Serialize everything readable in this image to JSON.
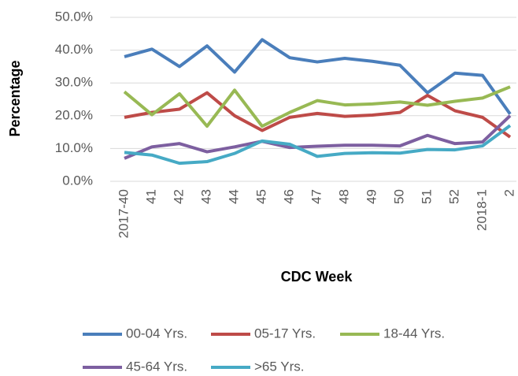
{
  "chart_data": {
    "type": "line",
    "x_label": "CDC Week",
    "y_label": "Percentage",
    "categories": [
      "2017-40",
      "41",
      "42",
      "43",
      "44",
      "45",
      "46",
      "47",
      "48",
      "49",
      "50",
      "51",
      "52",
      "2018-1",
      "2"
    ],
    "series": [
      {
        "name": "00-04 Yrs.",
        "color": "#4a7ebb",
        "values": [
          38,
          40.3,
          35,
          41.3,
          33.3,
          43.2,
          37.7,
          36.4,
          37.5,
          36.6,
          35.4,
          27,
          33,
          32.3,
          20.5
        ]
      },
      {
        "name": "05-17 Yrs.",
        "color": "#be4b48",
        "values": [
          19.5,
          21,
          22,
          27,
          20,
          15.5,
          19.5,
          20.7,
          19.8,
          20.2,
          21,
          26.2,
          21.5,
          19.5,
          13.5
        ]
      },
      {
        "name": "18-44 Yrs.",
        "color": "#98b954",
        "values": [
          27.3,
          20.3,
          26.7,
          16.8,
          27.8,
          16.8,
          21,
          24.6,
          23.3,
          23.6,
          24.2,
          23.2,
          24.4,
          25.4,
          28.8
        ]
      },
      {
        "name": "45-64 Yrs.",
        "color": "#7d5fa0",
        "values": [
          7,
          10.5,
          11.5,
          9,
          10.5,
          12.2,
          10.3,
          10.7,
          11,
          11,
          10.8,
          14,
          11.5,
          12,
          20
        ]
      },
      {
        "name": ">65 Yrs.",
        "color": "#46aac5",
        "values": [
          8.8,
          8,
          5.5,
          6,
          8.5,
          12.3,
          11.3,
          7.6,
          8.5,
          8.7,
          8.6,
          9.7,
          9.6,
          10.8,
          17
        ]
      }
    ],
    "ylim": [
      0,
      50
    ],
    "yticks": [
      {
        "value": 0,
        "label": "0.0%"
      },
      {
        "value": 10,
        "label": "10.0%"
      },
      {
        "value": 20,
        "label": "20.0%"
      },
      {
        "value": 30,
        "label": "30.0%"
      },
      {
        "value": 40,
        "label": "40.0%"
      },
      {
        "value": 50,
        "label": "50.0%"
      }
    ],
    "grid": true
  }
}
